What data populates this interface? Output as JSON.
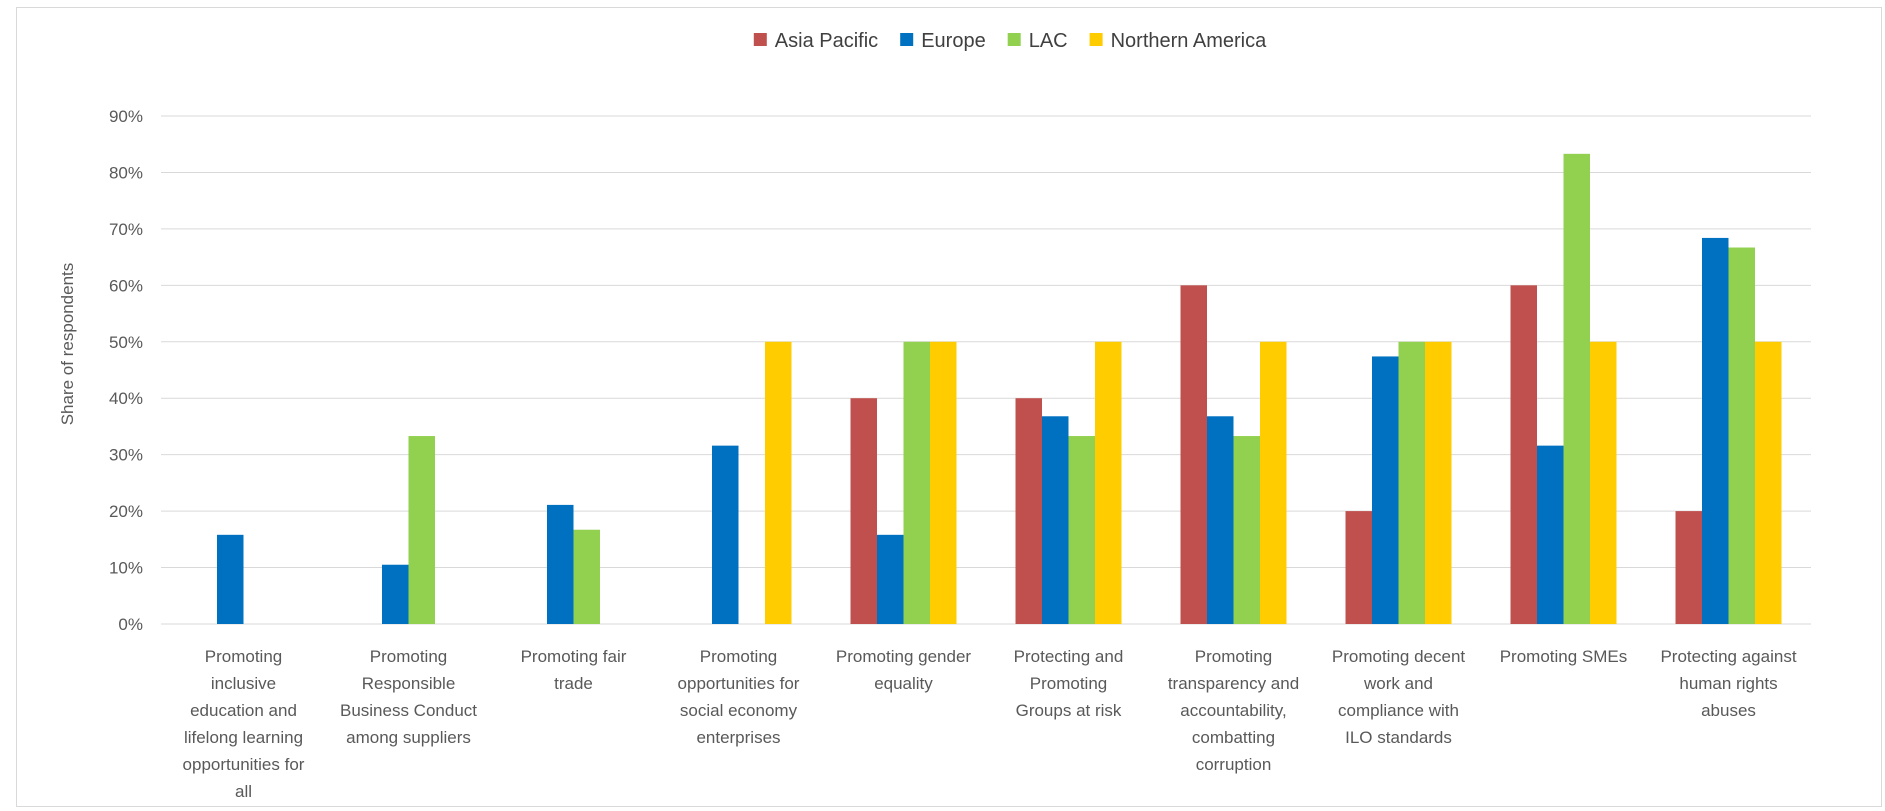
{
  "chart_data": {
    "type": "bar",
    "title": "",
    "xlabel": "",
    "ylabel": "Share of respondents",
    "ylim": [
      0,
      90
    ],
    "yticks": [
      0,
      10,
      20,
      30,
      40,
      50,
      60,
      70,
      80,
      90
    ],
    "ytick_labels": [
      "0%",
      "10%",
      "20%",
      "30%",
      "40%",
      "50%",
      "60%",
      "70%",
      "80%",
      "90%"
    ],
    "grid": true,
    "legend_position": "top-center",
    "categories": [
      "Promoting inclusive education and lifelong learning opportunities for all",
      "Promoting Responsible Business Conduct among suppliers",
      "Promoting fair trade",
      "Promoting opportunities for social economy enterprises",
      "Promoting gender equality",
      "Protecting and Promoting Groups at risk",
      "Promoting transparency and accountability, combatting corruption",
      "Promoting decent work and compliance with ILO standards",
      "Promoting SMEs",
      "Protecting against human rights abuses"
    ],
    "category_label_lines": [
      [
        "Promoting",
        "inclusive",
        "education and",
        "lifelong learning",
        "opportunities for",
        "all"
      ],
      [
        "Promoting",
        "Responsible",
        "Business Conduct",
        "among suppliers"
      ],
      [
        "Promoting fair",
        "trade"
      ],
      [
        "Promoting",
        "opportunities for",
        "social economy",
        "enterprises"
      ],
      [
        "Promoting gender",
        "equality"
      ],
      [
        "Protecting and",
        "Promoting",
        "Groups at risk"
      ],
      [
        "Promoting",
        "transparency and",
        "accountability,",
        "combatting",
        "corruption"
      ],
      [
        "Promoting decent",
        "work and",
        "compliance with",
        "ILO standards"
      ],
      [
        "Promoting SMEs"
      ],
      [
        "Protecting against",
        "human rights",
        "abuses"
      ]
    ],
    "series": [
      {
        "name": "Asia Pacific",
        "color": "#C0504D",
        "values": [
          0,
          0,
          0,
          0,
          40,
          40,
          60,
          20,
          60,
          20
        ]
      },
      {
        "name": "Europe",
        "color": "#0070C0",
        "values": [
          15.8,
          10.5,
          21.1,
          31.6,
          15.8,
          36.8,
          36.8,
          47.4,
          31.6,
          68.4
        ]
      },
      {
        "name": "LAC",
        "color": "#92D050",
        "values": [
          0,
          33.3,
          16.7,
          0,
          50,
          33.3,
          33.3,
          50,
          83.3,
          66.7
        ]
      },
      {
        "name": "Northern America",
        "color": "#FFCC00",
        "values": [
          0,
          0,
          0,
          50,
          50,
          50,
          50,
          50,
          50,
          50
        ]
      }
    ],
    "gridline_color": "#d9d9d9"
  }
}
